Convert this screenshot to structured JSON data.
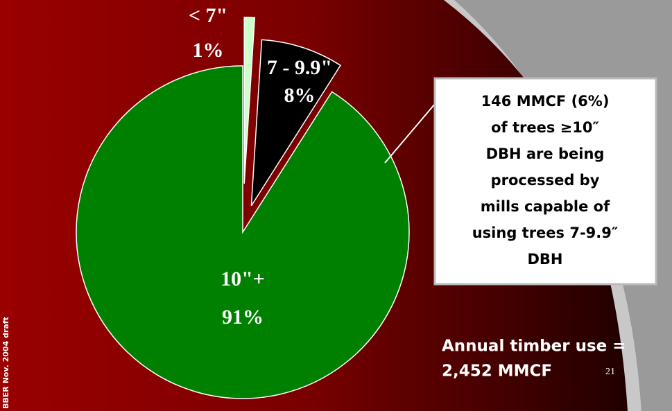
{
  "chart_data": {
    "type": "pie",
    "categories": [
      "< 7\"",
      "7 - 9.9\"",
      "10\"+"
    ],
    "values": [
      1,
      8,
      91
    ],
    "value_labels": [
      "1%",
      "8%",
      "91%"
    ],
    "colors": [
      "#ccffcc",
      "#000000",
      "#008000"
    ],
    "annotations": {
      "callout": [
        "146 MMCF (6%)",
        "of trees ≥10″",
        "DBH are being",
        "processed by",
        "mills capable of",
        "using trees 7-9.9″",
        "DBH"
      ],
      "total": [
        "Annual timber use =",
        "2,452 MMCF"
      ],
      "slide_number": "21",
      "side_note": "BBER Nov. 2004 draft"
    }
  }
}
